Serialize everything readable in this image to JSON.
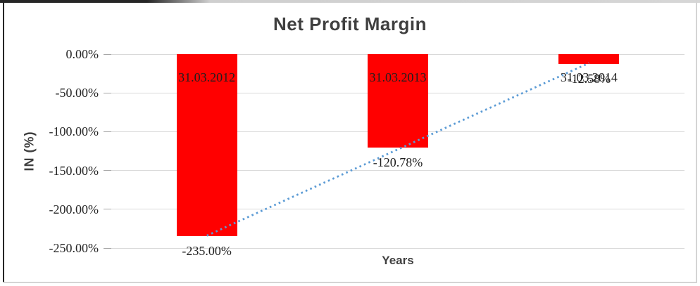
{
  "frame": {
    "background": "#ffffff",
    "border_dark": "#262626",
    "border_light": "#d4d4d4"
  },
  "chart_data": {
    "type": "bar",
    "title": "Net Profit Margin",
    "xlabel": "Years",
    "ylabel": "IN (%)",
    "categories": [
      "31.03.2012",
      "31.03.2013",
      "31.03.2014"
    ],
    "values": [
      -235.0,
      -120.78,
      -12.58
    ],
    "value_labels": [
      "-235.00%",
      "-120.78%",
      "-12.58%"
    ],
    "bar_color": "#ff0000",
    "ylim": [
      -250,
      0
    ],
    "yticks": [
      0,
      -50,
      -100,
      -150,
      -200,
      -250
    ],
    "ytick_labels": [
      "0.00%",
      "-50.00%",
      "-100.00%",
      "-150.00%",
      "-200.00%",
      "-250.00%"
    ],
    "grid": "horizontal",
    "gridline_color": "#d9d9d9",
    "tick_color": "#a6a6a6",
    "label_color": "#1f1f1f",
    "title_color": "#3f3f3f",
    "legend": "none",
    "trendline": {
      "type": "linear",
      "style": "dotted",
      "color": "#5b9bd5",
      "endpoints_pct": [
        -234.0,
        -11.6
      ]
    }
  }
}
